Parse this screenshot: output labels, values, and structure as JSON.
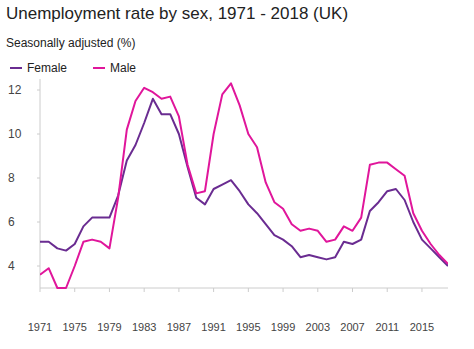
{
  "chart_data": {
    "type": "line",
    "title": "Unemployment rate by sex, 1971 - 2018 (UK)",
    "subtitle": "Seasonally adjusted (%)",
    "x": [
      1971,
      1972,
      1973,
      1974,
      1975,
      1976,
      1977,
      1978,
      1979,
      1980,
      1981,
      1982,
      1983,
      1984,
      1985,
      1986,
      1987,
      1988,
      1989,
      1990,
      1991,
      1992,
      1993,
      1994,
      1995,
      1996,
      1997,
      1998,
      1999,
      2000,
      2001,
      2002,
      2003,
      2004,
      2005,
      2006,
      2007,
      2008,
      2009,
      2010,
      2011,
      2012,
      2013,
      2014,
      2015,
      2016,
      2017,
      2018
    ],
    "series": [
      {
        "name": "Female",
        "color": "#6a2c91",
        "values": [
          5.1,
          5.1,
          4.8,
          4.7,
          5.0,
          5.8,
          6.2,
          6.2,
          6.2,
          7.2,
          8.8,
          9.5,
          10.5,
          11.6,
          10.9,
          10.9,
          10.0,
          8.5,
          7.1,
          6.8,
          7.5,
          7.7,
          7.9,
          7.4,
          6.8,
          6.4,
          5.9,
          5.4,
          5.2,
          4.9,
          4.4,
          4.5,
          4.4,
          4.3,
          4.4,
          5.1,
          5.0,
          5.2,
          6.5,
          6.9,
          7.4,
          7.5,
          7.0,
          6.0,
          5.2,
          4.8,
          4.4,
          4.0
        ]
      },
      {
        "name": "Male",
        "color": "#e0169b",
        "values": [
          3.6,
          3.9,
          3.0,
          3.0,
          4.0,
          5.1,
          5.2,
          5.1,
          4.8,
          7.1,
          10.2,
          11.5,
          12.1,
          11.9,
          11.6,
          11.7,
          10.8,
          8.6,
          7.3,
          7.4,
          10.0,
          11.8,
          12.3,
          11.3,
          10.0,
          9.4,
          7.8,
          6.9,
          6.6,
          5.9,
          5.6,
          5.7,
          5.6,
          5.1,
          5.2,
          5.8,
          5.6,
          6.2,
          8.6,
          8.7,
          8.7,
          8.4,
          8.1,
          6.4,
          5.6,
          5.0,
          4.5,
          4.1
        ]
      }
    ],
    "xlim": [
      1971,
      2018
    ],
    "xticks": [
      1971,
      1975,
      1979,
      1983,
      1987,
      1991,
      1995,
      1999,
      2003,
      2007,
      2011,
      2015
    ],
    "ylim": [
      3,
      12.5
    ],
    "yticks": [
      4,
      6,
      8,
      10,
      12
    ],
    "grid": false,
    "legend": "top-left"
  }
}
